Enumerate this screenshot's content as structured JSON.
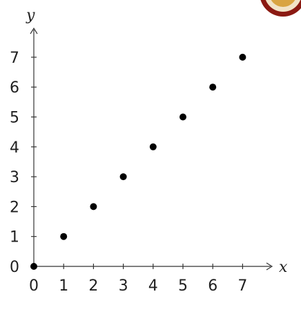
{
  "chart_data": {
    "type": "scatter",
    "title": "",
    "xlabel": "x",
    "ylabel": "y",
    "xlim": [
      0,
      7
    ],
    "ylim": [
      0,
      7
    ],
    "xticks": [
      "0",
      "1",
      "2",
      "3",
      "4",
      "5",
      "6",
      "7"
    ],
    "yticks": [
      "0",
      "1",
      "2",
      "3",
      "4",
      "5",
      "6",
      "7"
    ],
    "grid": false,
    "series": [
      {
        "x": [
          0,
          1,
          2,
          3,
          4,
          5,
          6,
          7
        ],
        "y": [
          0,
          1,
          2,
          3,
          4,
          5,
          6,
          7
        ]
      }
    ]
  },
  "colors": {
    "point": "#000000",
    "axis": "#333333",
    "logo": "#8b1a12"
  }
}
